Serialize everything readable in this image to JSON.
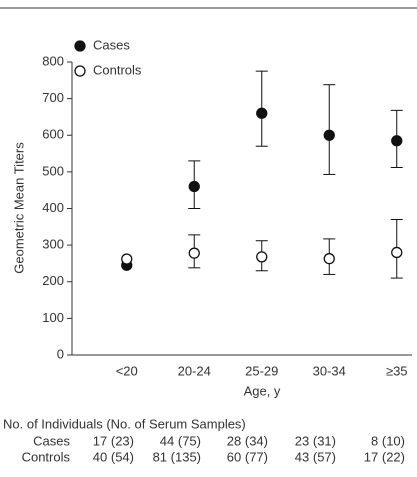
{
  "chart_data": {
    "type": "errorbar",
    "categories": [
      "<20",
      "20-24",
      "25-29",
      "30-34",
      "≥35"
    ],
    "x_label": "Age, y",
    "y_label": "Geometric Mean Titers",
    "ylim": [
      0,
      800
    ],
    "yticks": [
      0,
      100,
      200,
      300,
      400,
      500,
      600,
      700,
      800
    ],
    "legend": "top-left",
    "series": [
      {
        "name": "Cases",
        "color": "#111111",
        "filled": true,
        "values": [
          245,
          460,
          660,
          600,
          585
        ],
        "lower": [
          null,
          400,
          570,
          493,
          512
        ],
        "upper": [
          null,
          530,
          775,
          738,
          668
        ]
      },
      {
        "name": "Controls",
        "color": "#111111",
        "filled": false,
        "values": [
          262,
          278,
          268,
          263,
          280
        ],
        "lower": [
          null,
          238,
          230,
          220,
          210
        ],
        "upper": [
          null,
          328,
          312,
          317,
          370
        ]
      }
    ]
  },
  "table": {
    "title": "No. of Individuals (No. of Serum Samples)",
    "rows": [
      {
        "label": "Cases",
        "cells": [
          "17 (23)",
          "44 (75)",
          "28 (34)",
          "23 (31)",
          "8 (10)"
        ]
      },
      {
        "label": "Controls",
        "cells": [
          "40 (54)",
          "81 (135)",
          "60 (77)",
          "43 (57)",
          "17 (22)"
        ]
      }
    ]
  }
}
